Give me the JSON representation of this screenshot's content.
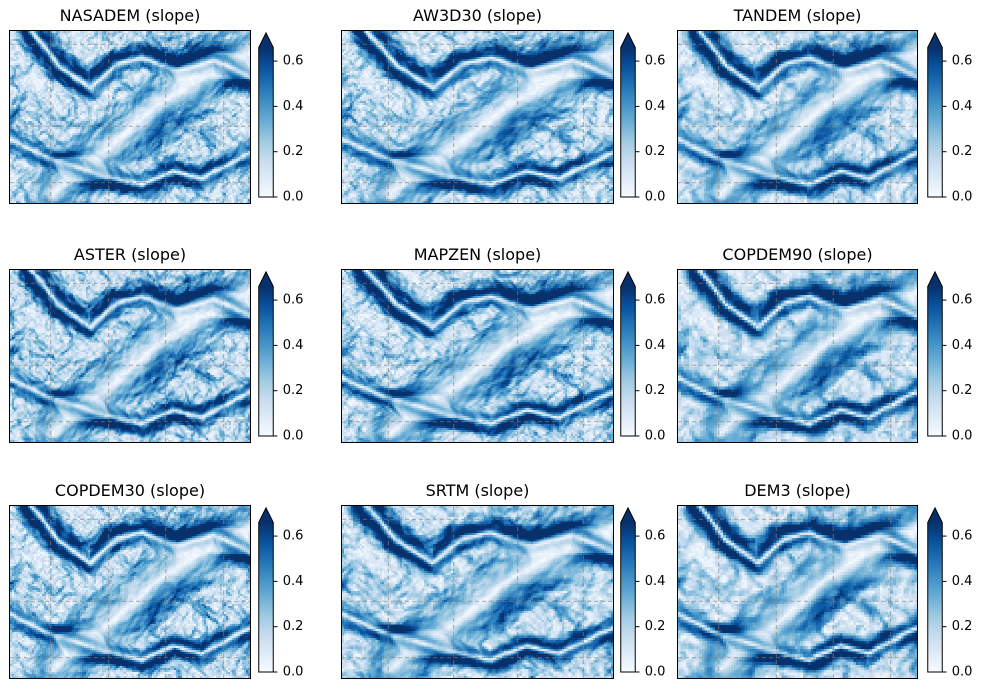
{
  "figure": {
    "background": "#ffffff",
    "panels": [
      {
        "title": "NASADEM (slope)",
        "res_factor": 1.0,
        "detail": 1.0,
        "detail_seed": 1
      },
      {
        "title": "AW3D30 (slope)",
        "res_factor": 1.0,
        "detail": 0.95,
        "detail_seed": 2
      },
      {
        "title": "TANDEM (slope)",
        "res_factor": 0.85,
        "detail": 0.8,
        "detail_seed": 3
      },
      {
        "title": "ASTER (slope)",
        "res_factor": 1.05,
        "detail": 1.25,
        "detail_seed": 4
      },
      {
        "title": "MAPZEN (slope)",
        "res_factor": 1.0,
        "detail": 1.0,
        "detail_seed": 5
      },
      {
        "title": "COPDEM90 (slope)",
        "res_factor": 0.72,
        "detail": 0.75,
        "detail_seed": 6
      },
      {
        "title": "COPDEM30 (slope)",
        "res_factor": 1.0,
        "detail": 0.95,
        "detail_seed": 7
      },
      {
        "title": "SRTM (slope)",
        "res_factor": 0.9,
        "detail": 0.85,
        "detail_seed": 8
      },
      {
        "title": "DEM3 (slope)",
        "res_factor": 0.75,
        "detail": 0.65,
        "detail_seed": 9
      }
    ],
    "colormap": {
      "name": "Blues",
      "stops": [
        "#f7fbff",
        "#deebf7",
        "#c6dbef",
        "#9ecae1",
        "#6baed6",
        "#4292c6",
        "#2171b5",
        "#08519c",
        "#08306b"
      ]
    },
    "colorbar": {
      "vmin": 0.0,
      "vmax": 0.66,
      "tick_values": [
        0.0,
        0.2,
        0.4,
        0.6
      ],
      "tick_labels": [
        "0.0",
        "0.2",
        "0.4",
        "0.6"
      ],
      "extend": "max"
    },
    "gridlines": {
      "vertical_fractions": [
        0.169,
        0.411,
        0.648,
        0.889
      ],
      "horizontal_fractions": [
        0.076,
        0.552,
        0.88
      ],
      "color": "#8a8178",
      "opacity": 0.85,
      "dash": [
        4,
        3
      ]
    },
    "terrain": {
      "seed": 7,
      "fbm_octaves": [
        [
          1,
          1.0
        ],
        [
          2,
          0.5
        ],
        [
          4,
          0.28
        ],
        [
          8,
          0.16
        ]
      ],
      "valley": {
        "points": [
          [
            0.18,
            0.95
          ],
          [
            0.3,
            0.8
          ],
          [
            0.42,
            0.68
          ],
          [
            0.52,
            0.56
          ],
          [
            0.63,
            0.42
          ],
          [
            0.78,
            0.3
          ],
          [
            0.9,
            0.2
          ],
          [
            1.02,
            0.1
          ]
        ],
        "sigma": 0.105,
        "depth": 0.55
      },
      "canyon_top": {
        "points": [
          [
            0.08,
            -0.02
          ],
          [
            0.2,
            0.2
          ],
          [
            0.33,
            0.33
          ],
          [
            0.45,
            0.18
          ],
          [
            0.55,
            0.15
          ],
          [
            0.7,
            0.22
          ],
          [
            0.85,
            0.16
          ],
          [
            1.02,
            0.28
          ]
        ],
        "sigma": 0.032,
        "depth": 0.3
      },
      "canyon_bottom": {
        "points": [
          [
            -0.02,
            0.62
          ],
          [
            0.12,
            0.72
          ],
          [
            0.25,
            0.78
          ],
          [
            0.4,
            0.86
          ],
          [
            0.55,
            0.9
          ],
          [
            0.68,
            0.82
          ],
          [
            0.8,
            0.86
          ],
          [
            1.02,
            0.7
          ]
        ],
        "sigma": 0.03,
        "depth": 0.28
      }
    }
  },
  "chart_data": {
    "type": "heatmap",
    "layout": "3x3 grid of slope maps, one panel per DEM source, each with an individual vertical colorbar",
    "panel_titles": [
      "NASADEM (slope)",
      "AW3D30 (slope)",
      "TANDEM (slope)",
      "ASTER (slope)",
      "MAPZEN (slope)",
      "COPDEM90 (slope)",
      "COPDEM30 (slope)",
      "SRTM (slope)",
      "DEM3 (slope)"
    ],
    "colormap": "Blues",
    "value_range": [
      0.0,
      0.66
    ],
    "colorbar_ticks": [
      0.0,
      0.2,
      0.4,
      0.6
    ],
    "colorbar_extend": "max",
    "gridlines": "dashed gray graticule (4 vertical, 3 horizontal lines per panel)",
    "approx_slope_field_rows_top_to_bottom": [
      [
        0.25,
        0.35,
        0.5,
        0.45,
        0.3,
        0.25,
        0.45,
        0.5
      ],
      [
        0.45,
        0.55,
        0.6,
        0.5,
        0.35,
        0.15,
        0.5,
        0.45
      ],
      [
        0.5,
        0.4,
        0.35,
        0.45,
        0.15,
        0.3,
        0.5,
        0.3
      ],
      [
        0.55,
        0.35,
        0.25,
        0.15,
        0.2,
        0.5,
        0.35,
        0.2
      ],
      [
        0.5,
        0.35,
        0.2,
        0.15,
        0.35,
        0.55,
        0.3,
        0.25
      ],
      [
        0.45,
        0.5,
        0.55,
        0.5,
        0.55,
        0.4,
        0.35,
        0.3
      ]
    ],
    "note": "All nine panels depict the same terrain area rendered from different DEM products; values are slope magnitude. Light = flat valley floors, dark navy = steep canyon walls; values above 0.66 clip to the darkest blue (extend max arrow)."
  }
}
